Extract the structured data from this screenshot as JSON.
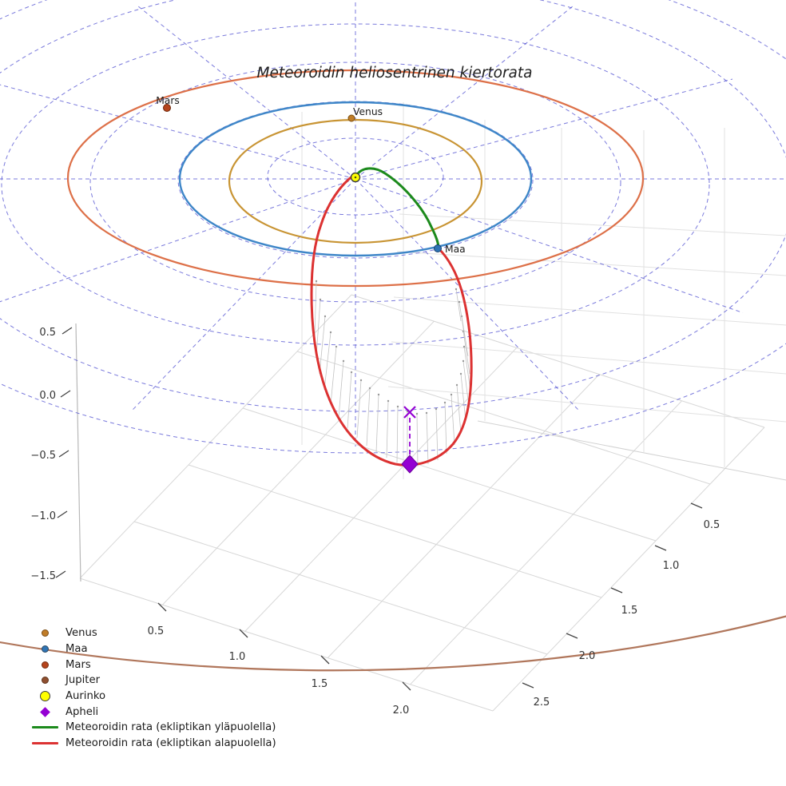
{
  "title": "Meteoroidin heliosentrinen kiertorata",
  "planet_labels": {
    "mars": "Mars",
    "venus": "Venus",
    "maa": "Maa"
  },
  "axes": {
    "x_ticks": [
      "0.5",
      "1.0",
      "1.5",
      "2.0"
    ],
    "y_ticks": [
      "0.5",
      "1.0",
      "1.5",
      "2.0",
      "2.5"
    ],
    "z_ticks": [
      "0.5",
      "0.0",
      "−0.5",
      "−1.0",
      "−1.5"
    ]
  },
  "colors": {
    "polar_grid": "#4747cf",
    "pane_line": "#d7d7d7",
    "wall_line": "#e1e1e1",
    "axis_edge": "#b8b8b8",
    "tick": "#444444",
    "venus_orbit": "#c89433",
    "earth_orbit": "#3e86c8",
    "mars_orbit": "#dd7048",
    "jupiter_orbit": "#b0765b",
    "venus_dot": "#c07d28",
    "earth_dot": "#2f74b4",
    "mars_dot": "#b5441c",
    "jupiter_dot": "#8f4f30",
    "sun_fill": "#ffff00",
    "sun_edge": "#3c3c3c",
    "aphelion": "#9400d3",
    "meteoroid_above": "#1c8a1c",
    "meteoroid_below": "#dc3232",
    "stem": "#c2c2c2",
    "stem_dot": "#9a9a9a"
  },
  "legend": [
    {
      "label": "Venus",
      "marker": "dot",
      "color": "#c07d28"
    },
    {
      "label": "Maa",
      "marker": "dot",
      "color": "#2f74b4"
    },
    {
      "label": "Mars",
      "marker": "dot",
      "color": "#b5441c"
    },
    {
      "label": "Jupiter",
      "marker": "dot",
      "color": "#8f4f30"
    },
    {
      "label": "Aurinko",
      "marker": "sun",
      "color": "#ffff00"
    },
    {
      "label": "Apheli",
      "marker": "diamond",
      "color": "#9400d3"
    },
    {
      "label": "Meteoroidin rata (ekliptikan yläpuolella)",
      "marker": "line",
      "color": "#1c8a1c"
    },
    {
      "label": "Meteoroidin rata (ekliptikan alapuolella)",
      "marker": "line",
      "color": "#dc3232"
    }
  ],
  "chart_data": {
    "type": "line",
    "projection": "3d",
    "title": "Meteoroidin heliosentrinen kiertorata",
    "x_ticks": [
      0.5,
      1.0,
      1.5,
      2.0
    ],
    "y_ticks": [
      0.5,
      1.0,
      1.5,
      2.0,
      2.5
    ],
    "z_ticks": [
      0.5,
      0.0,
      -0.5,
      -1.0,
      -1.5
    ],
    "grid": "dashed polar grid on ecliptic plane (rings every 0.5, spokes every 30 deg) plus light cartesian box panes",
    "legend_position": "lower left, no frame",
    "series": [
      {
        "name": "Venus",
        "kind": "planet-orbit",
        "color": "#c89433",
        "orbit_radius_est": 0.7
      },
      {
        "name": "Maa",
        "kind": "planet-orbit",
        "color": "#3e86c8",
        "orbit_radius_est": 1.0
      },
      {
        "name": "Mars",
        "kind": "planet-orbit",
        "color": "#dd7048",
        "orbit_radius_est": 1.5
      },
      {
        "name": "Jupiter",
        "kind": "planet-orbit",
        "color": "#b0765b",
        "orbit_radius_est": "beyond plotted range (only near arc visible)"
      },
      {
        "name": "Meteoroidin rata (ekliptikan yläpuolella)",
        "kind": "trajectory",
        "color": "#1c8a1c",
        "description": "short arc above ecliptic from Sun region to Earth's position (Maa)"
      },
      {
        "name": "Meteoroidin rata (ekliptikan alapuolella)",
        "kind": "trajectory",
        "color": "#dc3232",
        "description": "large loop below ecliptic from Maa around aphelion back toward the Sun; gray stems show drop below ecliptic plane"
      }
    ],
    "points": [
      {
        "name": "Aurinko",
        "marker": "yellow circle",
        "location": "origin / center of polar grid"
      },
      {
        "name": "Venus",
        "marker": "dot on Venus orbit"
      },
      {
        "name": "Maa",
        "marker": "dot on Earth orbit, node where green and red trajectory meet"
      },
      {
        "name": "Mars",
        "marker": "dot on Mars orbit, upper left"
      },
      {
        "name": "Apheli",
        "marker": "violet diamond at lowest point of red loop, dashed violet drop-line to x-mark on ecliptic plane"
      }
    ]
  }
}
